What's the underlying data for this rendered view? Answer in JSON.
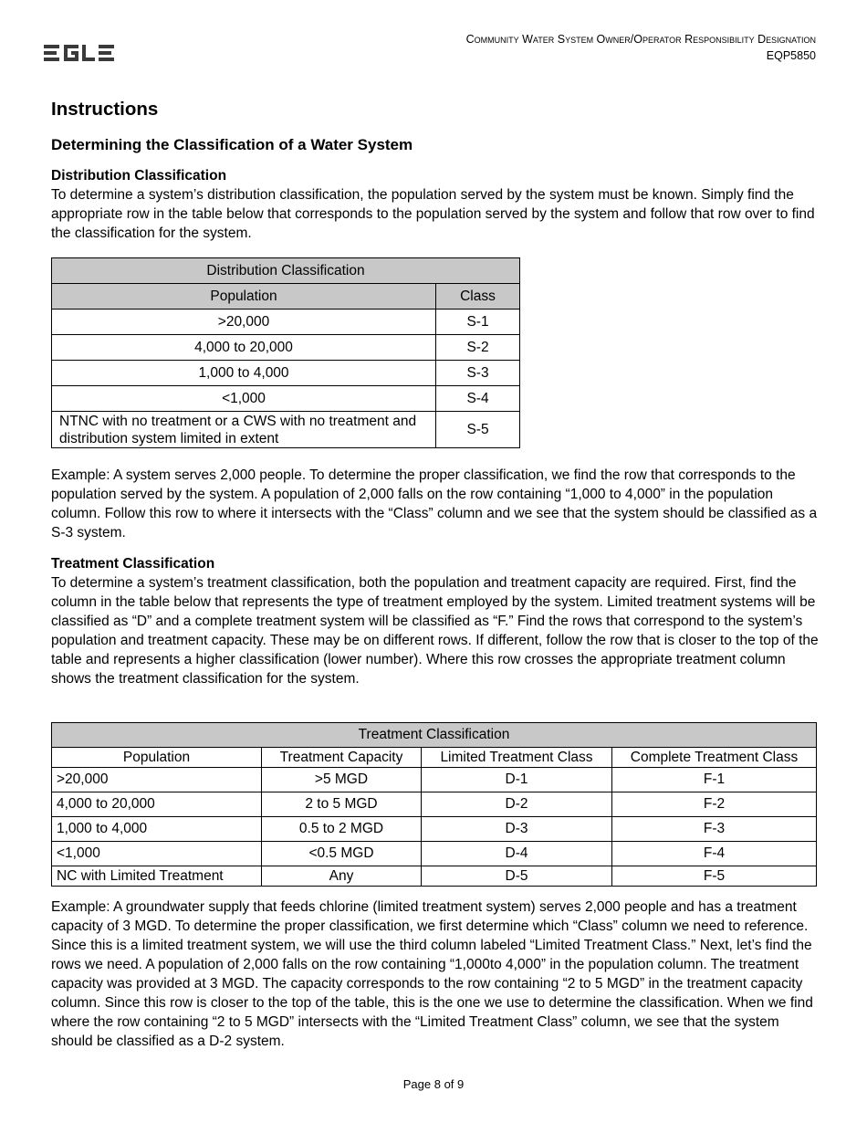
{
  "header": {
    "logo_text": "EGLE",
    "title": "Community Water System Owner/Operator Responsibility Designation",
    "form_number": "EQP5850"
  },
  "headings": {
    "h1": "Instructions",
    "h2": "Determining the Classification of a Water System"
  },
  "distribution": {
    "heading": "Distribution Classification",
    "intro": "To determine a system’s distribution classification, the population served by the system must be known. Simply find the appropriate row in the table below that corresponds to the population served by the system and follow that row over to find the classification for the system.",
    "table": {
      "title": "Distribution Classification",
      "columns": [
        "Population",
        "Class"
      ],
      "rows": [
        [
          "&gt;20,000",
          "S-1"
        ],
        [
          "4,000 to 20,000",
          "S-2"
        ],
        [
          "1,000 to 4,000",
          "S-3"
        ],
        [
          "<1,000",
          "S-4"
        ],
        [
          "NTNC with no treatment or a CWS with no treatment and distribution system limited in extent",
          "S-5"
        ]
      ]
    },
    "example": "Example:  A system serves 2,000 people.  To determine the proper classification, we find the row that corresponds to the population served by the system.  A population of 2,000 falls on the row containing “1,000 to 4,000” in the population column.  Follow this row to where it intersects with the “Class” column and we see that the system should be classified as a S-3 system."
  },
  "treatment": {
    "heading": "Treatment Classification",
    "intro": "To determine a system’s treatment classification, both the population and treatment capacity are required.  First, find the column in the table below that represents the type of treatment employed by the system.  Limited treatment systems will be classified as “D” and a complete treatment system will be classified as “F.”  Find the rows that correspond to the system’s population and treatment capacity.  These may be on different rows.  If different, follow the row that is closer to the top of the table and represents a higher classification (lower number).  Where this row crosses the appropriate treatment column shows the treatment classification for the system.",
    "table": {
      "title": "Treatment Classification",
      "columns": [
        "Population",
        "Treatment Capacity",
        "Limited Treatment Class",
        "Complete Treatment Class"
      ],
      "rows": [
        [
          ">20,000",
          ">5 MGD",
          "D-1",
          "F-1"
        ],
        [
          "4,000 to 20,000",
          "2 to 5 MGD",
          "D-2",
          "F-2"
        ],
        [
          "1,000 to 4,000",
          "0.5 to 2 MGD",
          "D-3",
          "F-3"
        ],
        [
          "<1,000",
          "<0.5 MGD",
          "D-4",
          "F-4"
        ],
        [
          "NC with Limited Treatment",
          "Any",
          "D-5",
          "F-5"
        ]
      ]
    },
    "example": "Example:  A groundwater supply that feeds chlorine (limited treatment system) serves 2,000 people and has a treatment capacity of 3 MGD.  To determine the proper classification, we first determine which “Class” column we need to reference.  Since this is a limited treatment system, we will use the third column labeled “Limited Treatment Class.”  Next, let’s find the rows we need.  A population of 2,000 falls on the row containing “1,000to 4,000” in the population column.  The treatment capacity was provided at 3 MGD.  The capacity corresponds to the row containing “2 to 5 MGD” in the treatment capacity column.  Since this row is closer to the top of the table, this is the one we use to determine the classification.  When we find where the row containing “2 to 5 MGD” intersects with the “Limited Treatment Class” column, we see that the system should be classified as a D-2 system."
  },
  "footer": {
    "page": "Page 8 of 9"
  }
}
